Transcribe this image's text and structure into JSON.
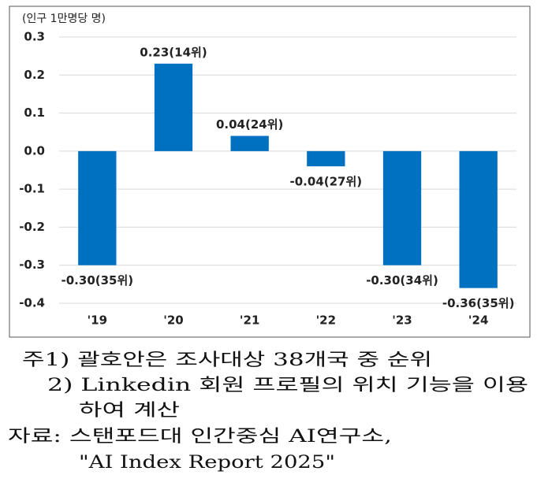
{
  "chart_data": {
    "type": "bar",
    "y_label": "(인구 1만명당 명)",
    "categories": [
      "'19",
      "'20",
      "'21",
      "'22",
      "'23",
      "'24"
    ],
    "values": [
      -0.3,
      0.23,
      0.04,
      -0.04,
      -0.3,
      -0.36
    ],
    "value_labels": [
      "-0.30(35위)",
      "0.23(14위)",
      "0.04(24위)",
      "-0.04(27위)",
      "-0.30(34위)",
      "-0.36(35위)"
    ],
    "color": "#0070c0",
    "ylim": [
      -0.4,
      0.3
    ],
    "yticks": [
      0.3,
      0.2,
      0.1,
      {
        "value": 0,
        "label": "0.0"
      },
      -0.1,
      -0.2,
      -0.3,
      -0.4
    ],
    "grid": true
  },
  "notes": [
    "주1) 괄호안은 조사대상 38개국 중 순위",
    "2) Linkedin 회원 프로필의 위치 기능을 이용",
    "하여 계산",
    "자료: 스탠포드대 인간중심 AI연구소,",
    "\"AI Index Report 2025\""
  ]
}
